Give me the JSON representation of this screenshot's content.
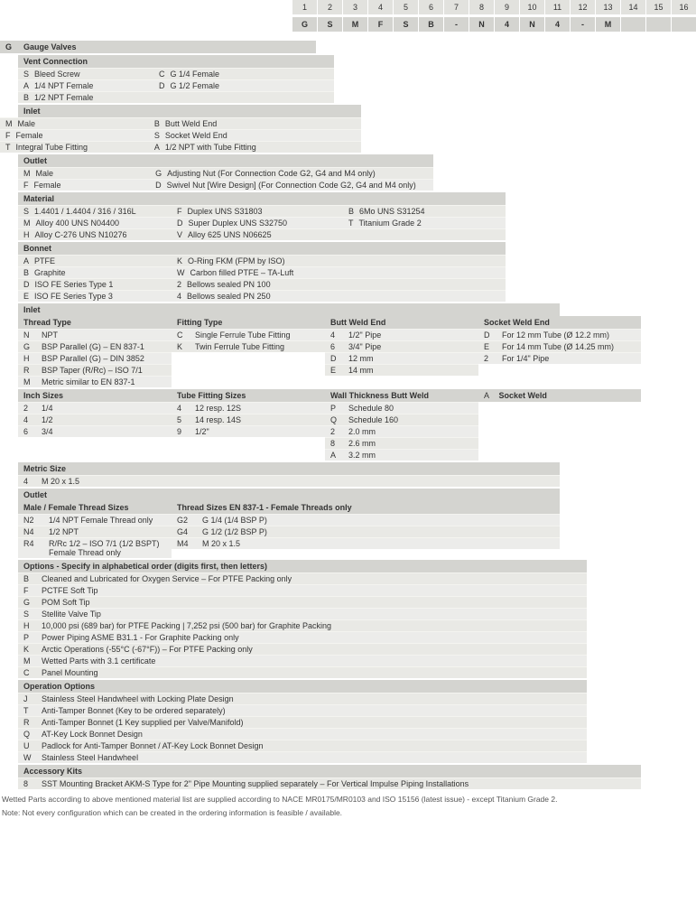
{
  "header": {
    "numbers": [
      "1",
      "2",
      "3",
      "4",
      "5",
      "6",
      "7",
      "8",
      "9",
      "10",
      "11",
      "12",
      "13",
      "14",
      "15",
      "16"
    ],
    "codes": [
      "G",
      "S",
      "M",
      "F",
      "S",
      "B",
      "-",
      "N",
      "4",
      "N",
      "4",
      "-",
      "M",
      "",
      "",
      ""
    ]
  },
  "gaugeValves": {
    "code": "G",
    "label": "Gauge Valves"
  },
  "ventConnection": {
    "title": "Vent Connection",
    "left": [
      {
        "c": "S",
        "v": "Bleed Screw"
      },
      {
        "c": "A",
        "v": "1/4 NPT Female"
      },
      {
        "c": "B",
        "v": "1/2 NPT Female"
      }
    ],
    "right": [
      {
        "c": "C",
        "v": "G 1/4 Female"
      },
      {
        "c": "D",
        "v": "G 1/2 Female"
      }
    ]
  },
  "inlet1": {
    "title": "Inlet",
    "left": [
      {
        "c": "M",
        "v": "Male"
      },
      {
        "c": "F",
        "v": "Female"
      },
      {
        "c": "T",
        "v": "Integral Tube Fitting"
      }
    ],
    "right": [
      {
        "c": "B",
        "v": "Butt Weld End"
      },
      {
        "c": "S",
        "v": "Socket Weld End"
      },
      {
        "c": "A",
        "v": "1/2 NPT with Tube Fitting"
      }
    ]
  },
  "outlet1": {
    "title": "Outlet",
    "left": [
      {
        "c": "M",
        "v": "Male"
      },
      {
        "c": "F",
        "v": "Female"
      }
    ],
    "right": [
      {
        "c": "G",
        "v": "Adjusting Nut (For Connection Code G2, G4 and M4 only)"
      },
      {
        "c": "D",
        "v": "Swivel Nut [Wire Design] (For Connection Code G2, G4 and M4 only)"
      }
    ]
  },
  "material": {
    "title": "Material",
    "c1": [
      {
        "c": "S",
        "v": "1.4401 / 1.4404 / 316 / 316L"
      },
      {
        "c": "M",
        "v": "Alloy 400 UNS N04400"
      },
      {
        "c": "H",
        "v": "Alloy C-276 UNS N10276"
      }
    ],
    "c2": [
      {
        "c": "F",
        "v": "Duplex UNS S31803"
      },
      {
        "c": "D",
        "v": "Super Duplex UNS S32750"
      },
      {
        "c": "V",
        "v": "Alloy 625 UNS N06625"
      }
    ],
    "c3": [
      {
        "c": "B",
        "v": "6Mo UNS S31254"
      },
      {
        "c": "T",
        "v": "Titanium Grade 2"
      }
    ]
  },
  "bonnet": {
    "title": "Bonnet",
    "c1": [
      {
        "c": "A",
        "v": "PTFE"
      },
      {
        "c": "B",
        "v": "Graphite"
      },
      {
        "c": "D",
        "v": "ISO FE Series Type 1"
      },
      {
        "c": "E",
        "v": "ISO FE Series Type 3"
      }
    ],
    "c2": [
      {
        "c": "K",
        "v": "O-Ring FKM (FPM by ISO)"
      },
      {
        "c": "W",
        "v": "Carbon filled PTFE – TA-Luft"
      },
      {
        "c": "2",
        "v": "Bellows sealed PN 100"
      },
      {
        "c": "4",
        "v": "Bellows sealed PN 250"
      }
    ]
  },
  "inlet2": {
    "title": "Inlet",
    "threadType": {
      "h": "Thread Type",
      "rows": [
        {
          "c": "N",
          "v": "NPT"
        },
        {
          "c": "G",
          "v": "BSP Parallel (G) – EN 837-1"
        },
        {
          "c": "H",
          "v": "BSP Parallel (G) – DIN 3852"
        },
        {
          "c": "R",
          "v": "BSP Taper (R/Rc) – ISO 7/1"
        },
        {
          "c": "M",
          "v": "Metric similar to EN 837-1"
        }
      ]
    },
    "fittingType": {
      "h": "Fitting Type",
      "rows": [
        {
          "c": "C",
          "v": "Single Ferrule Tube Fitting"
        },
        {
          "c": "K",
          "v": "Twin Ferrule Tube Fitting"
        }
      ]
    },
    "buttWeld": {
      "h": "Butt Weld End",
      "rows": [
        {
          "c": "4",
          "v": "1/2\" Pipe"
        },
        {
          "c": "6",
          "v": "3/4\" Pipe"
        },
        {
          "c": "D",
          "v": "12 mm"
        },
        {
          "c": "E",
          "v": "14 mm"
        }
      ]
    },
    "socketWeld": {
      "h": "Socket Weld End",
      "rows": [
        {
          "c": "D",
          "v": "For 12 mm Tube (Ø 12.2 mm)"
        },
        {
          "c": "E",
          "v": "For 14 mm Tube (Ø 14.25 mm)"
        },
        {
          "c": "2",
          "v": "For 1/4\" Pipe"
        }
      ]
    },
    "inchSizes": {
      "h": "Inch Sizes",
      "rows": [
        {
          "c": "2",
          "v": "1/4"
        },
        {
          "c": "4",
          "v": "1/2"
        },
        {
          "c": "6",
          "v": "3/4"
        }
      ]
    },
    "tubeFitSizes": {
      "h": "Tube Fitting Sizes",
      "rows": [
        {
          "c": "4",
          "v": "12 resp. 12S"
        },
        {
          "c": "5",
          "v": "14 resp. 14S"
        },
        {
          "c": "9",
          "v": "1/2\""
        }
      ]
    },
    "wallThick": {
      "h": "Wall Thickness Butt Weld",
      "rows": [
        {
          "c": "P",
          "v": "Schedule   80"
        },
        {
          "c": "Q",
          "v": "Schedule 160"
        },
        {
          "c": "2",
          "v": "2.0 mm"
        },
        {
          "c": "8",
          "v": "2.6 mm"
        },
        {
          "c": "A",
          "v": "3.2 mm"
        }
      ]
    },
    "socketWeld2": {
      "h": "Socket Weld",
      "code": "A"
    },
    "metricSize": {
      "h": "Metric Size",
      "rows": [
        {
          "c": "4",
          "v": "M 20 x 1.5"
        }
      ]
    }
  },
  "outlet2": {
    "title": "Outlet",
    "mfSizes": {
      "h": "Male / Female Thread Sizes",
      "rows": [
        {
          "c": "N2",
          "v": "1/4 NPT Female Thread only"
        },
        {
          "c": "N4",
          "v": "1/2 NPT"
        },
        {
          "c": "R4",
          "v": "R/Rc 1/2 – ISO 7/1 (1/2 BSPT) Female Thread only"
        }
      ]
    },
    "enSizes": {
      "h": "Thread Sizes EN 837-1 - Female Threads only",
      "rows": [
        {
          "c": "G2",
          "v": "G 1/4 (1/4 BSP P)"
        },
        {
          "c": "G4",
          "v": "G 1/2 (1/2 BSP P)"
        },
        {
          "c": "M4",
          "v": "M 20 x 1.5"
        }
      ]
    }
  },
  "options": {
    "title": "Options - Specify in alphabetical order (digits first, then letters)",
    "rows": [
      {
        "c": "B",
        "v": "Cleaned and Lubricated for Oxygen Service – For PTFE Packing only"
      },
      {
        "c": "F",
        "v": "PCTFE Soft Tip"
      },
      {
        "c": "G",
        "v": "POM Soft Tip"
      },
      {
        "c": "S",
        "v": "Stellite Valve Tip"
      },
      {
        "c": "H",
        "v": "10,000 psi (689 bar) for PTFE Packing | 7,252 psi (500 bar) for Graphite Packing"
      },
      {
        "c": "P",
        "v": "Power Piping ASME B31.1 - For Graphite Packing only"
      },
      {
        "c": "K",
        "v": "Arctic Operations (-55°C (-67°F)) – For PTFE Packing only"
      },
      {
        "c": "M",
        "v": "Wetted Parts with 3.1 certificate"
      },
      {
        "c": "C",
        "v": "Panel Mounting"
      }
    ]
  },
  "opOptions": {
    "title": "Operation Options",
    "rows": [
      {
        "c": "J",
        "v": "Stainless Steel Handwheel with Locking Plate Design"
      },
      {
        "c": "T",
        "v": "Anti-Tamper Bonnet (Key to be ordered separately)"
      },
      {
        "c": "R",
        "v": "Anti-Tamper Bonnet (1 Key supplied per Valve/Manifold)"
      },
      {
        "c": "Q",
        "v": "AT-Key Lock Bonnet Design"
      },
      {
        "c": "U",
        "v": "Padlock for Anti-Tamper Bonnet / AT-Key Lock Bonnet Design"
      },
      {
        "c": "W",
        "v": "Stainless Steel Handwheel"
      }
    ]
  },
  "accKits": {
    "title": "Accessory Kits",
    "rows": [
      {
        "c": "8",
        "v": "SST Mounting Bracket AKM-S Type for 2\" Pipe Mounting supplied separately – For Vertical Impulse Piping Installations"
      }
    ]
  },
  "footnote1": "Wetted Parts according to above mentioned material list are supplied according to NACE MR0175/MR0103 and ISO 15156 (latest issue) - except Titanium Grade 2.",
  "footnote2": "Note: Not every configuration which can be created in the ordering information is feasible / available."
}
